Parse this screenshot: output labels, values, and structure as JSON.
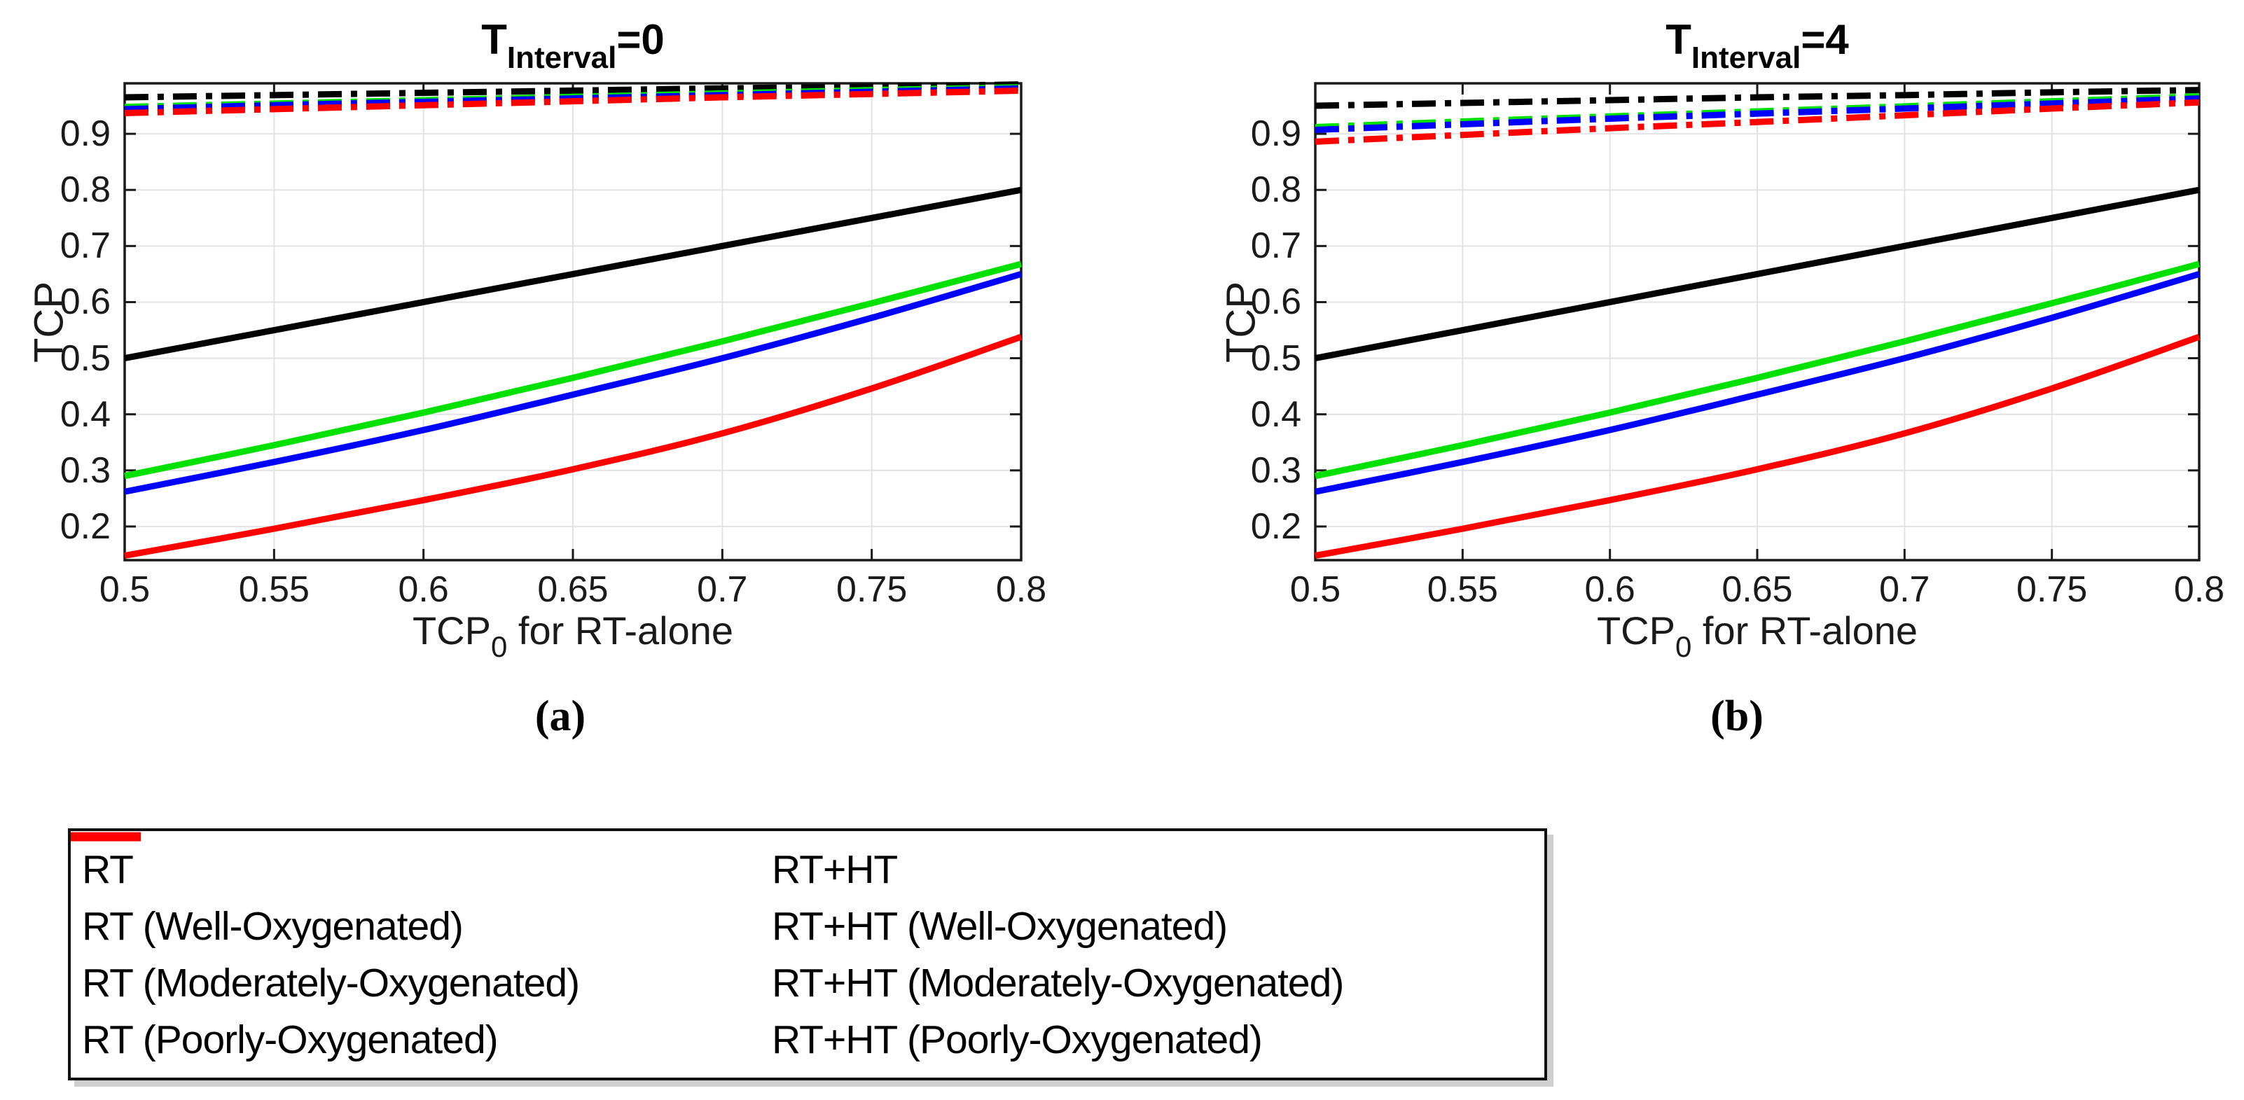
{
  "figure": {
    "background": "#ffffff",
    "axis_color": "#1a1a1a",
    "grid_color": "#e3e3e3"
  },
  "panels": [
    {
      "title": {
        "pre": "T",
        "sub": "Interval",
        "post": "=0"
      },
      "caption": "(a)",
      "ylabel": "TCP",
      "xlabel": {
        "pre": "TCP",
        "sub": "0",
        "post": " for RT-alone"
      }
    },
    {
      "title": {
        "pre": "T",
        "sub": "Interval",
        "post": "=4"
      },
      "caption": "(b)",
      "ylabel": "TCP",
      "xlabel": {
        "pre": "TCP",
        "sub": "0",
        "post": " for RT-alone"
      }
    }
  ],
  "axes": {
    "xtick_labels": [
      "0.5",
      "0.55",
      "0.6",
      "0.65",
      "0.7",
      "0.75",
      "0.8"
    ],
    "xtick_values": [
      0.5,
      0.55,
      0.6,
      0.65,
      0.7,
      0.75,
      0.8
    ],
    "ytick_labels": [
      "0.2",
      "0.3",
      "0.4",
      "0.5",
      "0.6",
      "0.7",
      "0.8",
      "0.9"
    ],
    "ytick_values": [
      0.2,
      0.3,
      0.4,
      0.5,
      0.6,
      0.7,
      0.8,
      0.9
    ],
    "xlim": [
      0.5,
      0.8
    ],
    "ylim": [
      0.14,
      0.99
    ]
  },
  "legend": {
    "columns": [
      [
        {
          "label": "RT",
          "color": "#000000",
          "style": "solid"
        },
        {
          "label": "RT (Well-Oxygenated)",
          "color": "#00e100",
          "style": "solid"
        },
        {
          "label": "RT (Moderately-Oxygenated)",
          "color": "#0000ff",
          "style": "solid"
        },
        {
          "label": "RT (Poorly-Oxygenated)",
          "color": "#ff0000",
          "style": "solid"
        }
      ],
      [
        {
          "label": "RT+HT",
          "color": "#000000",
          "style": "dashdot"
        },
        {
          "label": "RT+HT (Well-Oxygenated)",
          "color": "#00e100",
          "style": "dashdot"
        },
        {
          "label": "RT+HT (Moderately-Oxygenated)",
          "color": "#0000ff",
          "style": "dashdot"
        },
        {
          "label": "RT+HT (Poorly-Oxygenated)",
          "color": "#ff0000",
          "style": "dashdot"
        }
      ]
    ]
  },
  "chart_data": [
    {
      "type": "line",
      "title": "T_Interval=0",
      "xlabel": "TCP_0 for RT-alone",
      "ylabel": "TCP",
      "xlim": [
        0.5,
        0.8
      ],
      "ylim": [
        0.14,
        0.99
      ],
      "grid": true,
      "legend_position": "below-figure",
      "x": [
        0.5,
        0.55,
        0.6,
        0.65,
        0.7,
        0.75,
        0.8
      ],
      "series": [
        {
          "name": "RT",
          "color": "#000000",
          "style": "solid",
          "values": [
            0.5,
            0.55,
            0.6,
            0.65,
            0.7,
            0.75,
            0.8
          ]
        },
        {
          "name": "RT (Well-Oxygenated)",
          "color": "#00e100",
          "style": "solid",
          "values": [
            0.29,
            0.345,
            0.403,
            0.465,
            0.53,
            0.598,
            0.668
          ]
        },
        {
          "name": "RT (Moderately-Oxygenated)",
          "color": "#0000ff",
          "style": "solid",
          "values": [
            0.262,
            0.315,
            0.372,
            0.435,
            0.5,
            0.572,
            0.65
          ]
        },
        {
          "name": "RT (Poorly-Oxygenated)",
          "color": "#ff0000",
          "style": "solid",
          "values": [
            0.148,
            0.196,
            0.247,
            0.302,
            0.366,
            0.446,
            0.538
          ]
        },
        {
          "name": "RT+HT",
          "color": "#000000",
          "style": "dashdot",
          "values": [
            0.965,
            0.969,
            0.973,
            0.977,
            0.981,
            0.984,
            0.988
          ]
        },
        {
          "name": "RT+HT (Well-Oxygenated)",
          "color": "#00e100",
          "style": "dashdot",
          "values": [
            0.948,
            0.954,
            0.96,
            0.966,
            0.972,
            0.978,
            0.983
          ]
        },
        {
          "name": "RT+HT (Moderately-Oxygenated)",
          "color": "#0000ff",
          "style": "dashdot",
          "values": [
            0.944,
            0.951,
            0.957,
            0.963,
            0.969,
            0.975,
            0.981
          ]
        },
        {
          "name": "RT+HT (Poorly-Oxygenated)",
          "color": "#ff0000",
          "style": "dashdot",
          "values": [
            0.937,
            0.944,
            0.951,
            0.958,
            0.965,
            0.971,
            0.977
          ]
        }
      ]
    },
    {
      "type": "line",
      "title": "T_Interval=4",
      "xlabel": "TCP_0 for RT-alone",
      "ylabel": "TCP",
      "xlim": [
        0.5,
        0.8
      ],
      "ylim": [
        0.14,
        0.99
      ],
      "grid": true,
      "legend_position": "below-figure",
      "x": [
        0.5,
        0.55,
        0.6,
        0.65,
        0.7,
        0.75,
        0.8
      ],
      "series": [
        {
          "name": "RT",
          "color": "#000000",
          "style": "solid",
          "values": [
            0.5,
            0.55,
            0.6,
            0.65,
            0.7,
            0.75,
            0.8
          ]
        },
        {
          "name": "RT (Well-Oxygenated)",
          "color": "#00e100",
          "style": "solid",
          "values": [
            0.29,
            0.345,
            0.403,
            0.465,
            0.53,
            0.598,
            0.668
          ]
        },
        {
          "name": "RT (Moderately-Oxygenated)",
          "color": "#0000ff",
          "style": "solid",
          "values": [
            0.262,
            0.315,
            0.372,
            0.435,
            0.5,
            0.572,
            0.65
          ]
        },
        {
          "name": "RT (Poorly-Oxygenated)",
          "color": "#ff0000",
          "style": "solid",
          "values": [
            0.148,
            0.196,
            0.247,
            0.302,
            0.366,
            0.446,
            0.538
          ]
        },
        {
          "name": "RT+HT",
          "color": "#000000",
          "style": "dashdot",
          "values": [
            0.95,
            0.955,
            0.96,
            0.965,
            0.969,
            0.974,
            0.978
          ]
        },
        {
          "name": "RT+HT (Well-Oxygenated)",
          "color": "#00e100",
          "style": "dashdot",
          "values": [
            0.912,
            0.922,
            0.931,
            0.94,
            0.949,
            0.958,
            0.967
          ]
        },
        {
          "name": "RT+HT (Moderately-Oxygenated)",
          "color": "#0000ff",
          "style": "dashdot",
          "values": [
            0.907,
            0.917,
            0.927,
            0.936,
            0.945,
            0.954,
            0.963
          ]
        },
        {
          "name": "RT+HT (Poorly-Oxygenated)",
          "color": "#ff0000",
          "style": "dashdot",
          "values": [
            0.886,
            0.898,
            0.91,
            0.921,
            0.933,
            0.945,
            0.956
          ]
        }
      ]
    }
  ]
}
